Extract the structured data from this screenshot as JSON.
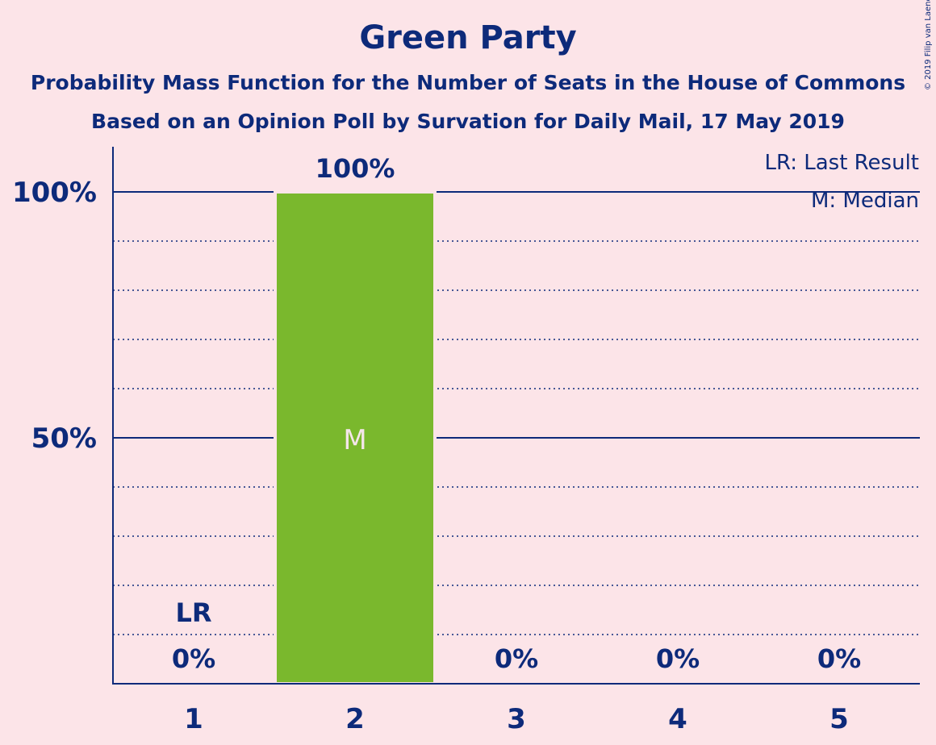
{
  "header": {
    "title": "Green Party",
    "subtitle": "Probability Mass Function for the Number of Seats in the House of Commons",
    "subtitle2": "Based on an Opinion Poll by Survation for Daily Mail, 17 May 2019",
    "copyright": "© 2019 Filip van Laenen"
  },
  "colors": {
    "background": "#fce4e8",
    "text": "#0d2a7a",
    "bar": "#7ab82d",
    "bar_label": "#f5e6ea"
  },
  "legend": {
    "last_result": "LR: Last Result",
    "median": "M: Median"
  },
  "chart_data": {
    "type": "bar",
    "title": "Green Party",
    "categories": [
      "1",
      "2",
      "3",
      "4",
      "5"
    ],
    "values": [
      0,
      100,
      0,
      0,
      0
    ],
    "value_labels": [
      "0%",
      "100%",
      "0%",
      "0%",
      "0%"
    ],
    "ylim": [
      0,
      110
    ],
    "yticks": [
      50,
      100
    ],
    "ytick_labels": [
      "50%",
      "100%"
    ],
    "minor_gridlines": [
      10,
      20,
      30,
      40,
      60,
      70,
      80,
      90
    ],
    "last_result_category": "1",
    "last_result_label": "LR",
    "median_category": "2",
    "median_label": "M",
    "legend_position": "top-right"
  }
}
